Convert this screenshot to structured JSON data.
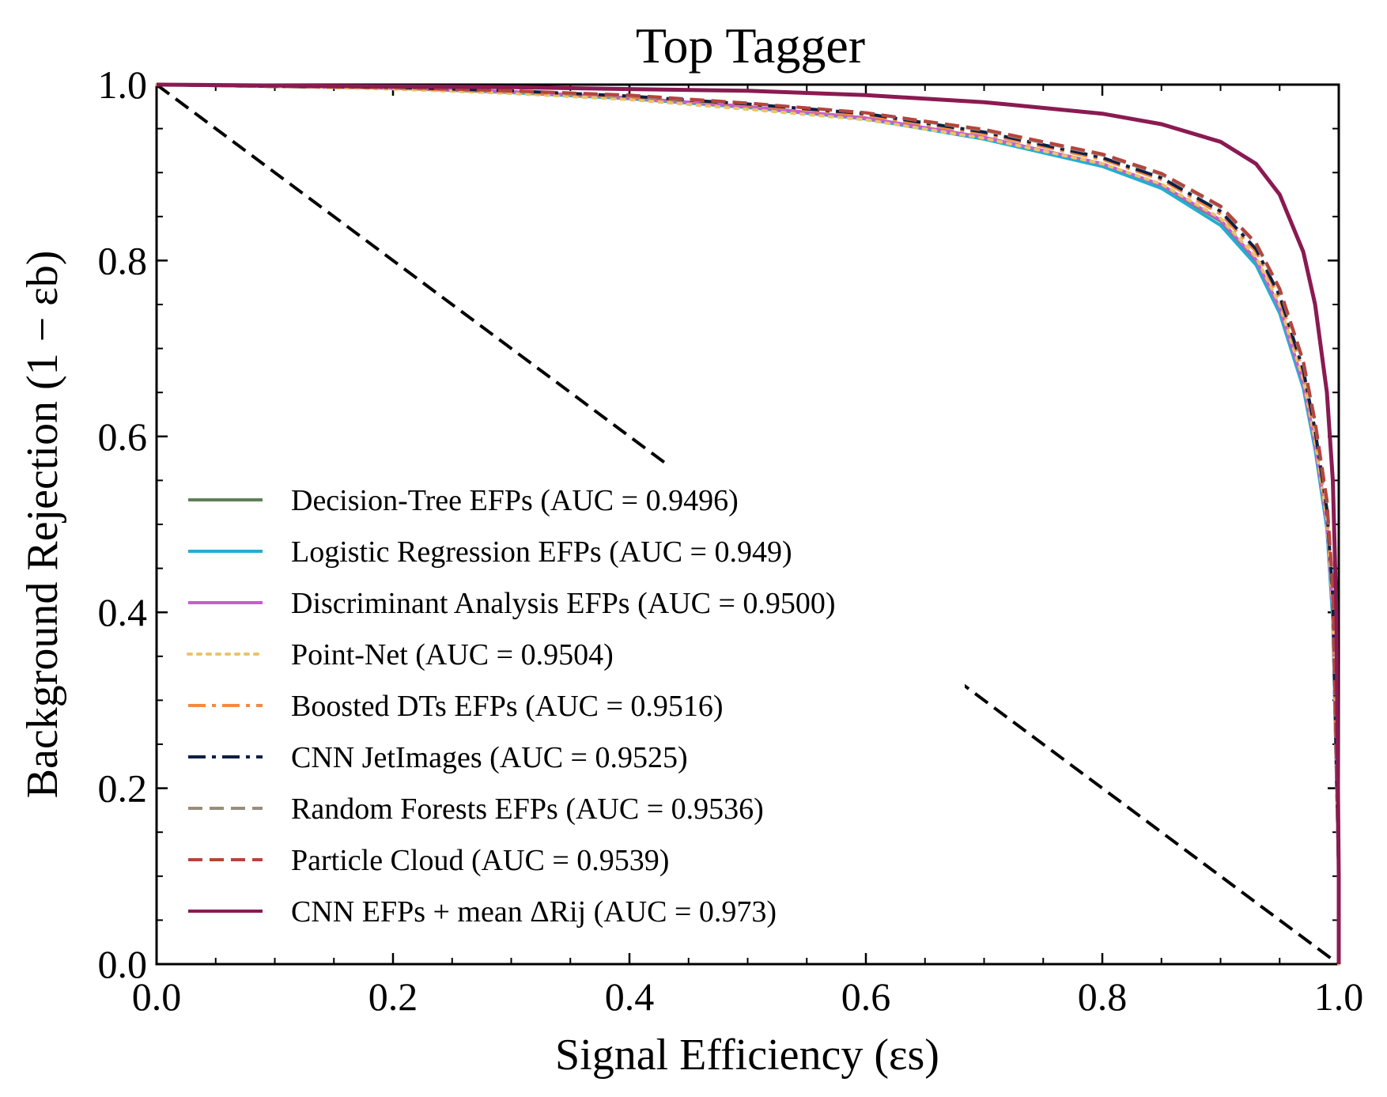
{
  "chart_data": {
    "type": "line",
    "title": "Top Tagger",
    "xlabel": "Signal Efficiency (εs)",
    "ylabel": "Background Rejection (1 − εb)",
    "xlim": [
      0.0,
      1.0
    ],
    "ylim": [
      0.0,
      1.0
    ],
    "xticks": [
      "0.0",
      "0.2",
      "0.4",
      "0.6",
      "0.8",
      "1.0"
    ],
    "yticks": [
      "0.0",
      "0.2",
      "0.4",
      "0.6",
      "0.8",
      "1.0"
    ],
    "grid": false,
    "legend_position": "lower-left",
    "reference_line": {
      "x": [
        0.0,
        1.0
      ],
      "y": [
        1.0,
        0.0
      ],
      "color": "#000000",
      "dash": "dashed"
    },
    "series": [
      {
        "name": "Decision-Tree EFPs (AUC = 0.9496)",
        "color": "#5f7f5a",
        "dash": "solid",
        "x": [
          0.0,
          0.1,
          0.2,
          0.3,
          0.4,
          0.5,
          0.6,
          0.7,
          0.8,
          0.85,
          0.9,
          0.93,
          0.95,
          0.97,
          0.98,
          0.99,
          0.995,
          1.0,
          1.0
        ],
        "y": [
          1.0,
          0.998,
          0.996,
          0.992,
          0.985,
          0.975,
          0.962,
          0.94,
          0.91,
          0.885,
          0.845,
          0.8,
          0.745,
          0.66,
          0.59,
          0.5,
          0.4,
          0.1,
          0.0
        ]
      },
      {
        "name": "Logistic Regression EFPs (AUC = 0.949)",
        "color": "#22aed1",
        "dash": "solid",
        "x": [
          0.0,
          0.1,
          0.2,
          0.3,
          0.4,
          0.5,
          0.6,
          0.7,
          0.8,
          0.85,
          0.9,
          0.93,
          0.95,
          0.97,
          0.98,
          0.99,
          0.995,
          1.0,
          1.0
        ],
        "y": [
          1.0,
          0.998,
          0.996,
          0.991,
          0.984,
          0.974,
          0.961,
          0.938,
          0.907,
          0.882,
          0.84,
          0.795,
          0.74,
          0.655,
          0.585,
          0.495,
          0.39,
          0.1,
          0.0
        ]
      },
      {
        "name": "Discriminant Analysis EFPs (AUC = 0.9500)",
        "color": "#c45fd0",
        "dash": "solid",
        "x": [
          0.0,
          0.1,
          0.2,
          0.3,
          0.4,
          0.5,
          0.6,
          0.7,
          0.8,
          0.85,
          0.9,
          0.93,
          0.95,
          0.97,
          0.98,
          0.99,
          0.995,
          1.0,
          1.0
        ],
        "y": [
          1.0,
          0.998,
          0.996,
          0.992,
          0.985,
          0.975,
          0.962,
          0.94,
          0.91,
          0.886,
          0.846,
          0.801,
          0.746,
          0.661,
          0.592,
          0.502,
          0.402,
          0.1,
          0.0
        ]
      },
      {
        "name": "Point-Net (AUC = 0.9504)",
        "color": "#e8c46a",
        "dash": "dotted",
        "x": [
          0.0,
          0.1,
          0.2,
          0.3,
          0.4,
          0.5,
          0.6,
          0.7,
          0.8,
          0.85,
          0.9,
          0.93,
          0.95,
          0.97,
          0.98,
          0.99,
          0.995,
          1.0,
          1.0
        ],
        "y": [
          1.0,
          0.998,
          0.995,
          0.99,
          0.983,
          0.972,
          0.96,
          0.939,
          0.91,
          0.887,
          0.848,
          0.804,
          0.75,
          0.665,
          0.595,
          0.505,
          0.405,
          0.1,
          0.0
        ]
      },
      {
        "name": "Boosted DTs EFPs (AUC = 0.9516)",
        "color": "#f58a42",
        "dash": "dashdot",
        "x": [
          0.0,
          0.1,
          0.2,
          0.3,
          0.4,
          0.5,
          0.6,
          0.7,
          0.8,
          0.85,
          0.9,
          0.93,
          0.95,
          0.97,
          0.98,
          0.99,
          0.995,
          1.0,
          1.0
        ],
        "y": [
          1.0,
          0.998,
          0.996,
          0.992,
          0.986,
          0.977,
          0.965,
          0.944,
          0.915,
          0.892,
          0.853,
          0.81,
          0.757,
          0.672,
          0.602,
          0.512,
          0.412,
          0.1,
          0.0
        ]
      },
      {
        "name": "CNN JetImages (AUC = 0.9525)",
        "color": "#0e1f45",
        "dash": "dashdot",
        "x": [
          0.0,
          0.1,
          0.2,
          0.3,
          0.4,
          0.5,
          0.6,
          0.7,
          0.8,
          0.85,
          0.9,
          0.93,
          0.95,
          0.97,
          0.98,
          0.99,
          0.995,
          1.0,
          1.0
        ],
        "y": [
          1.0,
          0.998,
          0.997,
          0.993,
          0.987,
          0.978,
          0.967,
          0.946,
          0.917,
          0.894,
          0.856,
          0.813,
          0.76,
          0.676,
          0.607,
          0.517,
          0.418,
          0.1,
          0.0
        ]
      },
      {
        "name": "Random Forests EFPs (AUC = 0.9536)",
        "color": "#9a8d7c",
        "dash": "dashed",
        "x": [
          0.0,
          0.1,
          0.2,
          0.3,
          0.4,
          0.5,
          0.6,
          0.7,
          0.8,
          0.85,
          0.9,
          0.93,
          0.95,
          0.97,
          0.98,
          0.99,
          0.995,
          1.0,
          1.0
        ],
        "y": [
          1.0,
          0.998,
          0.997,
          0.993,
          0.987,
          0.979,
          0.968,
          0.948,
          0.92,
          0.898,
          0.861,
          0.819,
          0.767,
          0.684,
          0.615,
          0.525,
          0.425,
          0.1,
          0.0
        ]
      },
      {
        "name": "Particle Cloud (AUC = 0.9539)",
        "color": "#b5443d",
        "dash": "dashed",
        "x": [
          0.0,
          0.1,
          0.2,
          0.3,
          0.4,
          0.5,
          0.6,
          0.7,
          0.8,
          0.85,
          0.9,
          0.93,
          0.95,
          0.97,
          0.98,
          0.99,
          0.995,
          1.0,
          1.0
        ],
        "y": [
          1.0,
          0.998,
          0.997,
          0.993,
          0.988,
          0.979,
          0.968,
          0.949,
          0.921,
          0.899,
          0.862,
          0.82,
          0.768,
          0.686,
          0.617,
          0.528,
          0.428,
          0.1,
          0.0
        ]
      },
      {
        "name": "CNN EFPs + mean ΔRij (AUC = 0.973)",
        "color": "#8a1a52",
        "dash": "solid",
        "x": [
          0.0,
          0.1,
          0.2,
          0.3,
          0.4,
          0.5,
          0.6,
          0.7,
          0.8,
          0.85,
          0.9,
          0.93,
          0.95,
          0.97,
          0.98,
          0.99,
          0.995,
          0.998,
          1.0,
          1.0
        ],
        "y": [
          1.0,
          0.999,
          0.998,
          0.997,
          0.995,
          0.993,
          0.988,
          0.98,
          0.967,
          0.955,
          0.935,
          0.91,
          0.875,
          0.81,
          0.75,
          0.65,
          0.55,
          0.4,
          0.1,
          0.0
        ]
      }
    ]
  }
}
